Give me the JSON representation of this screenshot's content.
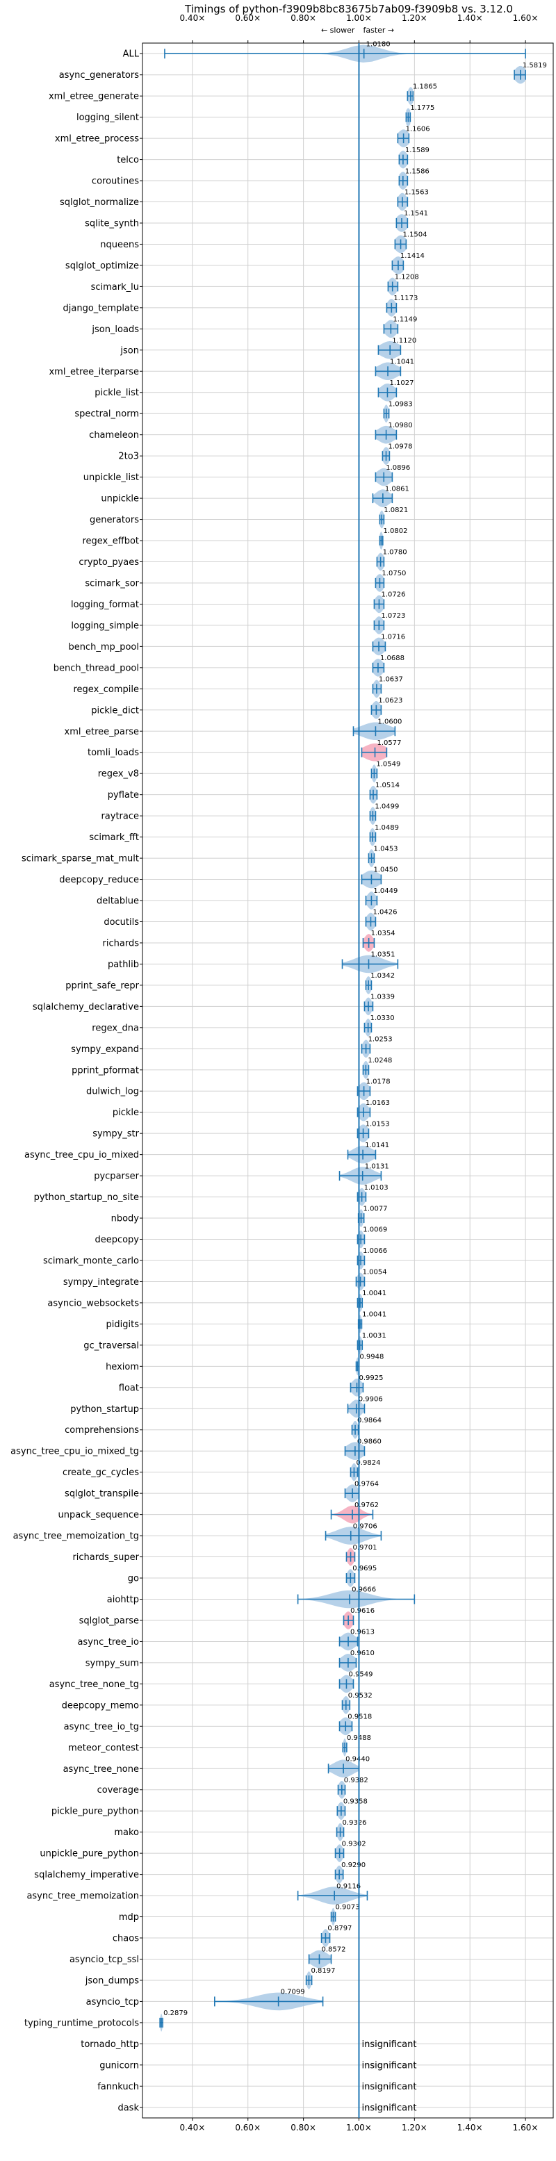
{
  "chart_data": {
    "type": "violin",
    "title": "Timings of python-f3909b8bc83675b7ab09-f3909b8 vs. 3.12.0",
    "xlim": [
      0.22,
      1.7
    ],
    "xticks": [
      0.4,
      0.6,
      0.8,
      1.0,
      1.2,
      1.4,
      1.6
    ],
    "xtick_labels": [
      "0.40×",
      "0.60×",
      "0.80×",
      "1.00×",
      "1.20×",
      "1.40×",
      "1.60×"
    ],
    "direction_labels": {
      "slower": "← slower",
      "faster": "faster →"
    },
    "grid": true,
    "colors": {
      "violin": "#1f77b4",
      "violin_fill": "#a9c9e5",
      "highlight": "#f4a6b8",
      "reference": "#1f77b4",
      "grid": "#d0d0d0"
    },
    "benchmarks": [
      {
        "name": "ALL",
        "value": 1.018,
        "label": "1.0180",
        "min": 0.3,
        "max": 1.6,
        "spread": 0.06,
        "kind": "blue"
      },
      {
        "name": "async_generators",
        "value": 1.5819,
        "label": "1.5819",
        "min": 1.56,
        "max": 1.6,
        "spread": 0.02,
        "kind": "blue"
      },
      {
        "name": "xml_etree_generate",
        "value": 1.1865,
        "label": "1.1865",
        "min": 1.175,
        "max": 1.195,
        "spread": 0.01,
        "kind": "blue"
      },
      {
        "name": "logging_silent",
        "value": 1.1775,
        "label": "1.1775",
        "min": 1.17,
        "max": 1.185,
        "spread": 0.01,
        "kind": "blue"
      },
      {
        "name": "xml_etree_process",
        "value": 1.1606,
        "label": "1.1606",
        "min": 1.14,
        "max": 1.18,
        "spread": 0.02,
        "kind": "blue"
      },
      {
        "name": "telco",
        "value": 1.1589,
        "label": "1.1589",
        "min": 1.145,
        "max": 1.175,
        "spread": 0.015,
        "kind": "blue"
      },
      {
        "name": "coroutines",
        "value": 1.1586,
        "label": "1.1586",
        "min": 1.145,
        "max": 1.175,
        "spread": 0.015,
        "kind": "blue"
      },
      {
        "name": "sqlglot_normalize",
        "value": 1.1563,
        "label": "1.1563",
        "min": 1.14,
        "max": 1.175,
        "spread": 0.015,
        "kind": "blue"
      },
      {
        "name": "sqlite_synth",
        "value": 1.1541,
        "label": "1.1541",
        "min": 1.135,
        "max": 1.175,
        "spread": 0.02,
        "kind": "blue"
      },
      {
        "name": "nqueens",
        "value": 1.1504,
        "label": "1.1504",
        "min": 1.13,
        "max": 1.17,
        "spread": 0.02,
        "kind": "blue"
      },
      {
        "name": "sqlglot_optimize",
        "value": 1.1414,
        "label": "1.1414",
        "min": 1.12,
        "max": 1.16,
        "spread": 0.02,
        "kind": "blue"
      },
      {
        "name": "scimark_lu",
        "value": 1.1208,
        "label": "1.1208",
        "min": 1.105,
        "max": 1.14,
        "spread": 0.015,
        "kind": "blue"
      },
      {
        "name": "django_template",
        "value": 1.1173,
        "label": "1.1173",
        "min": 1.1,
        "max": 1.135,
        "spread": 0.015,
        "kind": "blue"
      },
      {
        "name": "json_loads",
        "value": 1.1149,
        "label": "1.1149",
        "min": 1.09,
        "max": 1.14,
        "spread": 0.02,
        "kind": "blue"
      },
      {
        "name": "json",
        "value": 1.112,
        "label": "1.1120",
        "min": 1.07,
        "max": 1.15,
        "spread": 0.035,
        "kind": "blue"
      },
      {
        "name": "xml_etree_iterparse",
        "value": 1.1041,
        "label": "1.1041",
        "min": 1.06,
        "max": 1.15,
        "spread": 0.035,
        "kind": "blue"
      },
      {
        "name": "pickle_list",
        "value": 1.1027,
        "label": "1.1027",
        "min": 1.07,
        "max": 1.135,
        "spread": 0.025,
        "kind": "blue"
      },
      {
        "name": "spectral_norm",
        "value": 1.0983,
        "label": "1.0983",
        "min": 1.09,
        "max": 1.108,
        "spread": 0.008,
        "kind": "blue"
      },
      {
        "name": "chameleon",
        "value": 1.098,
        "label": "1.0980",
        "min": 1.06,
        "max": 1.135,
        "spread": 0.03,
        "kind": "blue"
      },
      {
        "name": "2to3",
        "value": 1.0978,
        "label": "1.0978",
        "min": 1.085,
        "max": 1.11,
        "spread": 0.012,
        "kind": "blue"
      },
      {
        "name": "unpickle_list",
        "value": 1.0896,
        "label": "1.0896",
        "min": 1.06,
        "max": 1.12,
        "spread": 0.025,
        "kind": "blue"
      },
      {
        "name": "unpickle",
        "value": 1.0861,
        "label": "1.0861",
        "min": 1.05,
        "max": 1.12,
        "spread": 0.025,
        "kind": "blue"
      },
      {
        "name": "generators",
        "value": 1.0821,
        "label": "1.0821",
        "min": 1.075,
        "max": 1.09,
        "spread": 0.008,
        "kind": "blue"
      },
      {
        "name": "regex_effbot",
        "value": 1.0802,
        "label": "1.0802",
        "min": 1.075,
        "max": 1.086,
        "spread": 0.006,
        "kind": "blue"
      },
      {
        "name": "crypto_pyaes",
        "value": 1.078,
        "label": "1.0780",
        "min": 1.065,
        "max": 1.09,
        "spread": 0.012,
        "kind": "blue"
      },
      {
        "name": "scimark_sor",
        "value": 1.075,
        "label": "1.0750",
        "min": 1.06,
        "max": 1.09,
        "spread": 0.015,
        "kind": "blue"
      },
      {
        "name": "logging_format",
        "value": 1.0726,
        "label": "1.0726",
        "min": 1.055,
        "max": 1.09,
        "spread": 0.015,
        "kind": "blue"
      },
      {
        "name": "logging_simple",
        "value": 1.0723,
        "label": "1.0723",
        "min": 1.055,
        "max": 1.09,
        "spread": 0.015,
        "kind": "blue"
      },
      {
        "name": "bench_mp_pool",
        "value": 1.0716,
        "label": "1.0716",
        "min": 1.05,
        "max": 1.095,
        "spread": 0.02,
        "kind": "blue"
      },
      {
        "name": "bench_thread_pool",
        "value": 1.0688,
        "label": "1.0688",
        "min": 1.05,
        "max": 1.09,
        "spread": 0.018,
        "kind": "blue"
      },
      {
        "name": "regex_compile",
        "value": 1.0637,
        "label": "1.0637",
        "min": 1.05,
        "max": 1.08,
        "spread": 0.012,
        "kind": "blue"
      },
      {
        "name": "pickle_dict",
        "value": 1.0623,
        "label": "1.0623",
        "min": 1.045,
        "max": 1.08,
        "spread": 0.015,
        "kind": "blue"
      },
      {
        "name": "xml_etree_parse",
        "value": 1.06,
        "label": "1.0600",
        "min": 0.98,
        "max": 1.13,
        "spread": 0.05,
        "kind": "blue"
      },
      {
        "name": "tomli_loads",
        "value": 1.0577,
        "label": "1.0577",
        "min": 1.01,
        "max": 1.1,
        "spread": 0.04,
        "kind": "pink"
      },
      {
        "name": "regex_v8",
        "value": 1.0549,
        "label": "1.0549",
        "min": 1.045,
        "max": 1.065,
        "spread": 0.008,
        "kind": "blue"
      },
      {
        "name": "pyflate",
        "value": 1.0514,
        "label": "1.0514",
        "min": 1.04,
        "max": 1.065,
        "spread": 0.012,
        "kind": "blue"
      },
      {
        "name": "raytrace",
        "value": 1.0499,
        "label": "1.0499",
        "min": 1.04,
        "max": 1.06,
        "spread": 0.01,
        "kind": "blue"
      },
      {
        "name": "scimark_fft",
        "value": 1.0489,
        "label": "1.0489",
        "min": 1.04,
        "max": 1.06,
        "spread": 0.01,
        "kind": "blue"
      },
      {
        "name": "scimark_sparse_mat_mult",
        "value": 1.0453,
        "label": "1.0453",
        "min": 1.035,
        "max": 1.055,
        "spread": 0.01,
        "kind": "blue"
      },
      {
        "name": "deepcopy_reduce",
        "value": 1.045,
        "label": "1.0450",
        "min": 1.01,
        "max": 1.08,
        "spread": 0.03,
        "kind": "blue"
      },
      {
        "name": "deltablue",
        "value": 1.0449,
        "label": "1.0449",
        "min": 1.025,
        "max": 1.065,
        "spread": 0.015,
        "kind": "blue"
      },
      {
        "name": "docutils",
        "value": 1.0426,
        "label": "1.0426",
        "min": 1.025,
        "max": 1.06,
        "spread": 0.015,
        "kind": "blue"
      },
      {
        "name": "richards",
        "value": 1.0354,
        "label": "1.0354",
        "min": 1.015,
        "max": 1.055,
        "spread": 0.015,
        "kind": "pink"
      },
      {
        "name": "pathlib",
        "value": 1.0351,
        "label": "1.0351",
        "min": 0.94,
        "max": 1.14,
        "spread": 0.05,
        "kind": "blue"
      },
      {
        "name": "pprint_safe_repr",
        "value": 1.0342,
        "label": "1.0342",
        "min": 1.025,
        "max": 1.045,
        "spread": 0.01,
        "kind": "blue"
      },
      {
        "name": "sqlalchemy_declarative",
        "value": 1.0339,
        "label": "1.0339",
        "min": 1.02,
        "max": 1.05,
        "spread": 0.012,
        "kind": "blue"
      },
      {
        "name": "regex_dna",
        "value": 1.033,
        "label": "1.0330",
        "min": 1.02,
        "max": 1.045,
        "spread": 0.01,
        "kind": "blue"
      },
      {
        "name": "sympy_expand",
        "value": 1.0253,
        "label": "1.0253",
        "min": 1.01,
        "max": 1.04,
        "spread": 0.012,
        "kind": "blue"
      },
      {
        "name": "pprint_pformat",
        "value": 1.0248,
        "label": "1.0248",
        "min": 1.015,
        "max": 1.035,
        "spread": 0.01,
        "kind": "blue"
      },
      {
        "name": "dulwich_log",
        "value": 1.0178,
        "label": "1.0178",
        "min": 0.995,
        "max": 1.04,
        "spread": 0.018,
        "kind": "blue"
      },
      {
        "name": "pickle",
        "value": 1.0163,
        "label": "1.0163",
        "min": 0.995,
        "max": 1.04,
        "spread": 0.018,
        "kind": "blue"
      },
      {
        "name": "sympy_str",
        "value": 1.0153,
        "label": "1.0153",
        "min": 0.995,
        "max": 1.035,
        "spread": 0.018,
        "kind": "blue"
      },
      {
        "name": "async_tree_cpu_io_mixed",
        "value": 1.0141,
        "label": "1.0141",
        "min": 0.96,
        "max": 1.06,
        "spread": 0.035,
        "kind": "blue"
      },
      {
        "name": "pycparser",
        "value": 1.0131,
        "label": "1.0131",
        "min": 0.93,
        "max": 1.08,
        "spread": 0.04,
        "kind": "blue"
      },
      {
        "name": "python_startup_no_site",
        "value": 1.0103,
        "label": "1.0103",
        "min": 0.995,
        "max": 1.025,
        "spread": 0.012,
        "kind": "blue"
      },
      {
        "name": "nbody",
        "value": 1.0077,
        "label": "1.0077",
        "min": 0.998,
        "max": 1.018,
        "spread": 0.008,
        "kind": "blue"
      },
      {
        "name": "deepcopy",
        "value": 1.0069,
        "label": "1.0069",
        "min": 0.995,
        "max": 1.02,
        "spread": 0.01,
        "kind": "blue"
      },
      {
        "name": "scimark_monte_carlo",
        "value": 1.0066,
        "label": "1.0066",
        "min": 0.995,
        "max": 1.02,
        "spread": 0.01,
        "kind": "blue"
      },
      {
        "name": "sympy_integrate",
        "value": 1.0054,
        "label": "1.0054",
        "min": 0.99,
        "max": 1.02,
        "spread": 0.012,
        "kind": "blue"
      },
      {
        "name": "asyncio_websockets",
        "value": 1.0041,
        "label": "1.0041",
        "min": 0.995,
        "max": 1.012,
        "spread": 0.008,
        "kind": "blue"
      },
      {
        "name": "pidigits",
        "value": 1.0041,
        "label": "1.0041",
        "min": 0.998,
        "max": 1.01,
        "spread": 0.006,
        "kind": "blue"
      },
      {
        "name": "gc_traversal",
        "value": 1.0031,
        "label": "1.0031",
        "min": 0.995,
        "max": 1.012,
        "spread": 0.008,
        "kind": "blue"
      },
      {
        "name": "hexiom",
        "value": 0.9948,
        "label": "0.9948",
        "min": 0.99,
        "max": 1.0,
        "spread": 0.005,
        "kind": "blue"
      },
      {
        "name": "float",
        "value": 0.9925,
        "label": "0.9925",
        "min": 0.97,
        "max": 1.015,
        "spread": 0.018,
        "kind": "blue"
      },
      {
        "name": "python_startup",
        "value": 0.9906,
        "label": "0.9906",
        "min": 0.96,
        "max": 1.02,
        "spread": 0.02,
        "kind": "blue"
      },
      {
        "name": "comprehensions",
        "value": 0.9864,
        "label": "0.9864",
        "min": 0.975,
        "max": 0.998,
        "spread": 0.01,
        "kind": "blue"
      },
      {
        "name": "async_tree_cpu_io_mixed_tg",
        "value": 0.986,
        "label": "0.9860",
        "min": 0.95,
        "max": 1.02,
        "spread": 0.03,
        "kind": "blue"
      },
      {
        "name": "create_gc_cycles",
        "value": 0.9824,
        "label": "0.9824",
        "min": 0.97,
        "max": 0.995,
        "spread": 0.01,
        "kind": "blue"
      },
      {
        "name": "sqlglot_transpile",
        "value": 0.9764,
        "label": "0.9764",
        "min": 0.95,
        "max": 1.0,
        "spread": 0.02,
        "kind": "blue"
      },
      {
        "name": "unpack_sequence",
        "value": 0.9762,
        "label": "0.9762",
        "min": 0.9,
        "max": 1.05,
        "spread": 0.03,
        "kind": "pink"
      },
      {
        "name": "async_tree_memoization_tg",
        "value": 0.9706,
        "label": "0.9706",
        "min": 0.88,
        "max": 1.08,
        "spread": 0.05,
        "kind": "blue"
      },
      {
        "name": "richards_super",
        "value": 0.9701,
        "label": "0.9701",
        "min": 0.955,
        "max": 0.985,
        "spread": 0.012,
        "kind": "pink"
      },
      {
        "name": "go",
        "value": 0.9695,
        "label": "0.9695",
        "min": 0.955,
        "max": 0.985,
        "spread": 0.012,
        "kind": "blue"
      },
      {
        "name": "aiohttp",
        "value": 0.9666,
        "label": "0.9666",
        "min": 0.78,
        "max": 1.2,
        "spread": 0.07,
        "kind": "blue"
      },
      {
        "name": "sqlglot_parse",
        "value": 0.9616,
        "label": "0.9616",
        "min": 0.945,
        "max": 0.98,
        "spread": 0.015,
        "kind": "pink"
      },
      {
        "name": "async_tree_io",
        "value": 0.9613,
        "label": "0.9613",
        "min": 0.93,
        "max": 0.995,
        "spread": 0.025,
        "kind": "blue"
      },
      {
        "name": "sympy_sum",
        "value": 0.961,
        "label": "0.9610",
        "min": 0.93,
        "max": 0.99,
        "spread": 0.025,
        "kind": "blue"
      },
      {
        "name": "async_tree_none_tg",
        "value": 0.9549,
        "label": "0.9549",
        "min": 0.93,
        "max": 0.98,
        "spread": 0.02,
        "kind": "blue"
      },
      {
        "name": "deepcopy_memo",
        "value": 0.9532,
        "label": "0.9532",
        "min": 0.94,
        "max": 0.967,
        "spread": 0.012,
        "kind": "blue"
      },
      {
        "name": "async_tree_io_tg",
        "value": 0.9518,
        "label": "0.9518",
        "min": 0.93,
        "max": 0.975,
        "spread": 0.02,
        "kind": "blue"
      },
      {
        "name": "meteor_contest",
        "value": 0.9488,
        "label": "0.9488",
        "min": 0.942,
        "max": 0.956,
        "spread": 0.006,
        "kind": "blue"
      },
      {
        "name": "async_tree_none",
        "value": 0.944,
        "label": "0.9440",
        "min": 0.89,
        "max": 1.0,
        "spread": 0.035,
        "kind": "blue"
      },
      {
        "name": "coverage",
        "value": 0.9382,
        "label": "0.9382",
        "min": 0.925,
        "max": 0.95,
        "spread": 0.012,
        "kind": "blue"
      },
      {
        "name": "pickle_pure_python",
        "value": 0.9358,
        "label": "0.9358",
        "min": 0.922,
        "max": 0.95,
        "spread": 0.012,
        "kind": "blue"
      },
      {
        "name": "mako",
        "value": 0.9326,
        "label": "0.9326",
        "min": 0.92,
        "max": 0.945,
        "spread": 0.01,
        "kind": "blue"
      },
      {
        "name": "unpickle_pure_python",
        "value": 0.9302,
        "label": "0.9302",
        "min": 0.915,
        "max": 0.945,
        "spread": 0.012,
        "kind": "blue"
      },
      {
        "name": "sqlalchemy_imperative",
        "value": 0.929,
        "label": "0.9290",
        "min": 0.915,
        "max": 0.943,
        "spread": 0.012,
        "kind": "blue"
      },
      {
        "name": "async_tree_memoization",
        "value": 0.9116,
        "label": "0.9116",
        "min": 0.78,
        "max": 1.03,
        "spread": 0.055,
        "kind": "blue"
      },
      {
        "name": "mdp",
        "value": 0.9073,
        "label": "0.9073",
        "min": 0.9,
        "max": 0.915,
        "spread": 0.006,
        "kind": "blue"
      },
      {
        "name": "chaos",
        "value": 0.8797,
        "label": "0.8797",
        "min": 0.865,
        "max": 0.895,
        "spread": 0.012,
        "kind": "blue"
      },
      {
        "name": "asyncio_tcp_ssl",
        "value": 0.8572,
        "label": "0.8572",
        "min": 0.82,
        "max": 0.9,
        "spread": 0.03,
        "kind": "blue"
      },
      {
        "name": "json_dumps",
        "value": 0.8197,
        "label": "0.8197",
        "min": 0.81,
        "max": 0.83,
        "spread": 0.008,
        "kind": "blue"
      },
      {
        "name": "asyncio_tcp",
        "value": 0.7099,
        "label": "0.7099",
        "min": 0.48,
        "max": 0.87,
        "spread": 0.08,
        "kind": "blue"
      },
      {
        "name": "typing_runtime_protocols",
        "value": 0.2879,
        "label": "0.2879",
        "min": 0.283,
        "max": 0.293,
        "spread": 0.004,
        "kind": "blue"
      },
      {
        "name": "tornado_http",
        "insignificant": true,
        "label": "insignificant"
      },
      {
        "name": "gunicorn",
        "insignificant": true,
        "label": "insignificant"
      },
      {
        "name": "fannkuch",
        "insignificant": true,
        "label": "insignificant"
      },
      {
        "name": "dask",
        "insignificant": true,
        "label": "insignificant"
      }
    ]
  }
}
